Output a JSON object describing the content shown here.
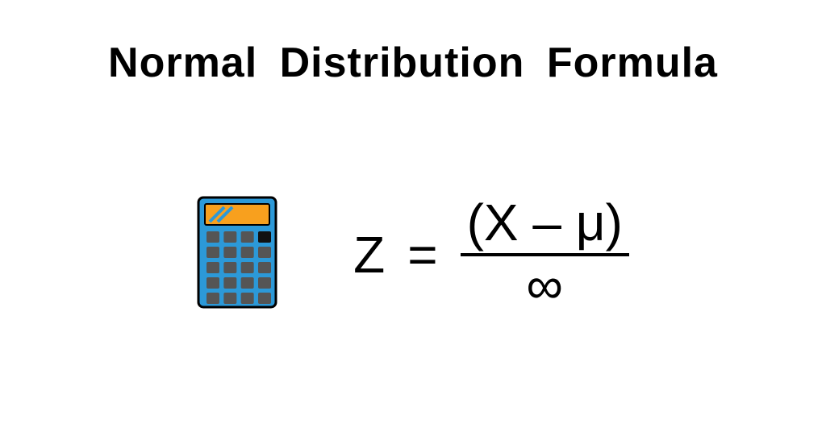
{
  "title": {
    "words": [
      "Normal",
      "Distribution",
      "Formula"
    ],
    "fontsize": 52,
    "fontweight": 700,
    "color": "#000000"
  },
  "formula": {
    "z": "Z",
    "equals": "=",
    "numerator": "(X – μ)",
    "denominator": "∞",
    "fontsize": 64,
    "color": "#000000",
    "fracline_width": 4,
    "fracline_color": "#000000"
  },
  "calculator_icon": {
    "body_color": "#2c99d8",
    "body_stroke": "#000000",
    "display_color": "#f8a01e",
    "display_stripe_color": "#2c99d8",
    "button_color": "#555555",
    "special_button_color": "#111111",
    "width": 100,
    "height": 140
  },
  "background_color": "#ffffff"
}
